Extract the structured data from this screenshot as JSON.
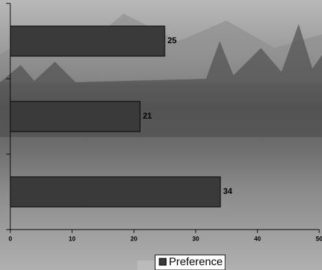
{
  "chart_data": {
    "type": "bar",
    "orientation": "horizontal",
    "categories": [
      null,
      null,
      null
    ],
    "series": [
      {
        "name": "Preference",
        "color": "#3a3a3a",
        "values": [
          25,
          21,
          34
        ]
      }
    ],
    "xlim": [
      0,
      50
    ],
    "xticks": [
      0,
      10,
      20,
      30,
      40,
      50
    ],
    "legend": "bottom",
    "grid": false
  }
}
